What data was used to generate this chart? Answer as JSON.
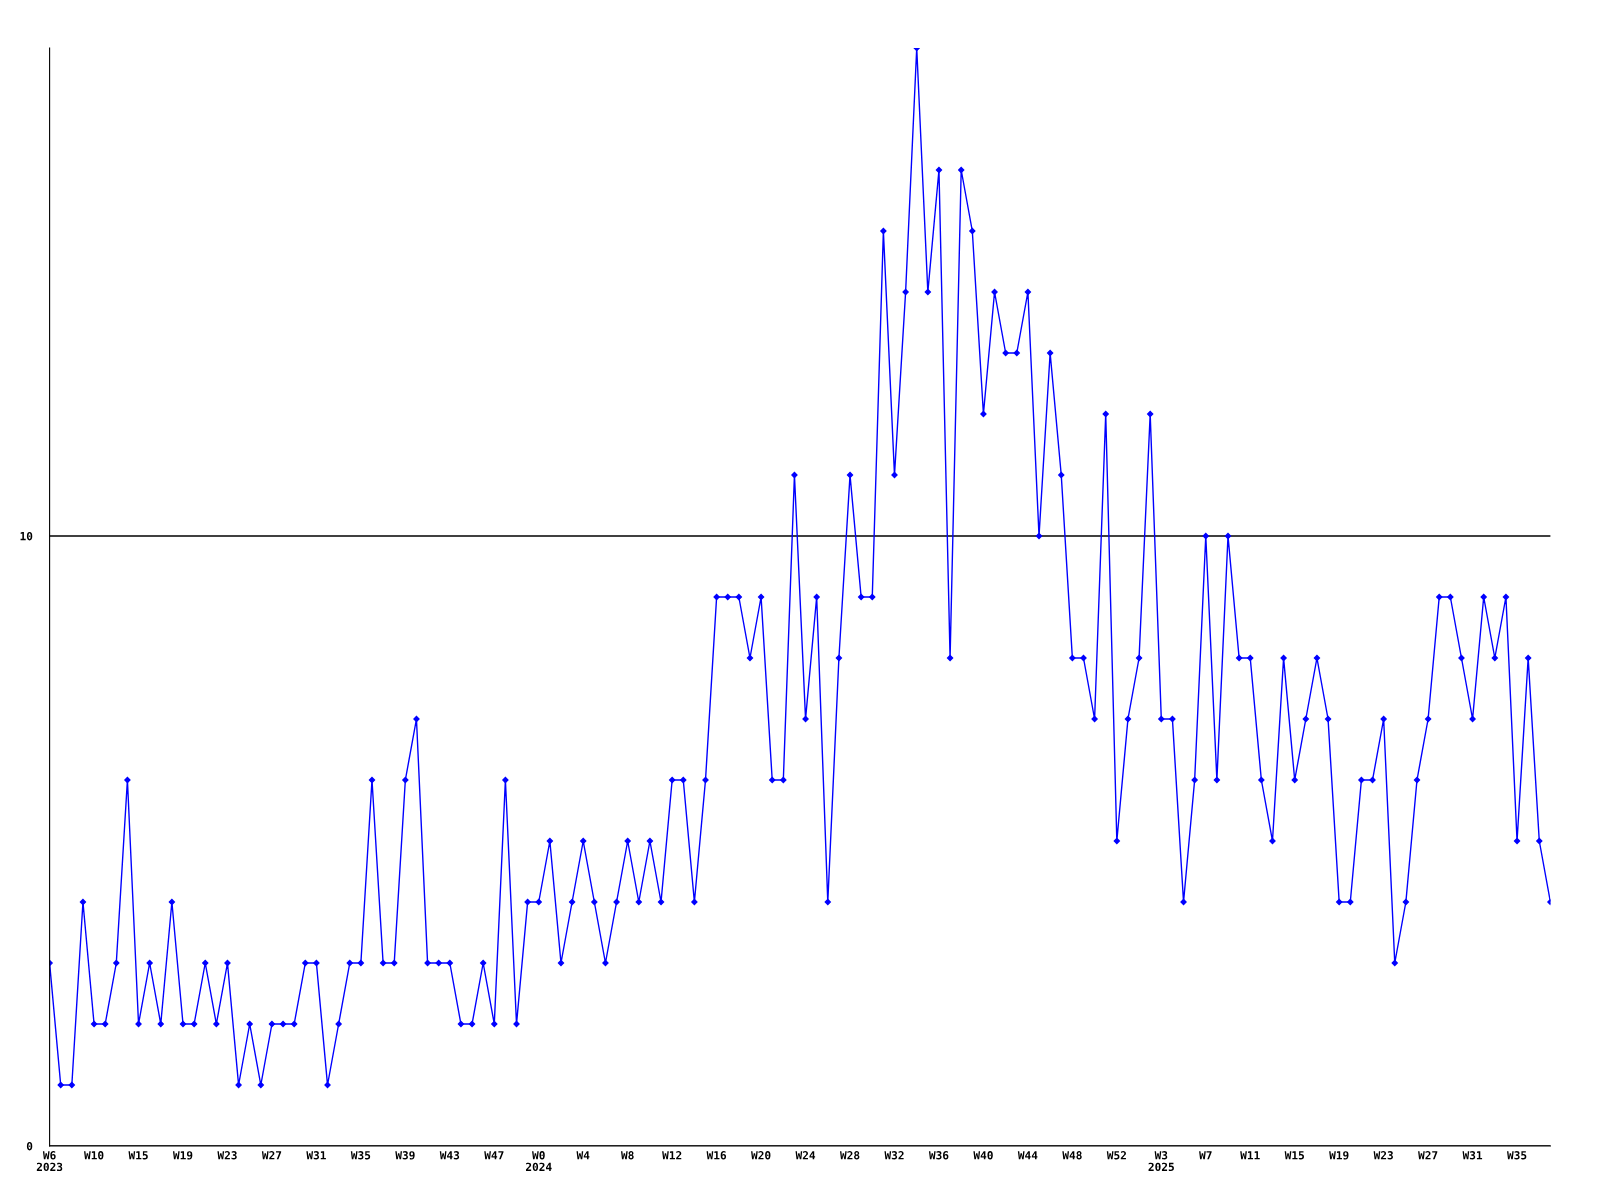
{
  "chart_data": {
    "type": "line",
    "categories": [
      "W6\n2023",
      null,
      null,
      null,
      "W10",
      null,
      null,
      null,
      "W15",
      null,
      null,
      null,
      "W19",
      null,
      null,
      null,
      "W23",
      null,
      null,
      null,
      "W27",
      null,
      null,
      null,
      "W31",
      null,
      null,
      null,
      "W35",
      null,
      null,
      null,
      "W39",
      null,
      null,
      null,
      "W43",
      null,
      null,
      null,
      "W47",
      null,
      null,
      null,
      "W0\n2024",
      null,
      null,
      null,
      "W4",
      null,
      null,
      null,
      "W8",
      null,
      null,
      null,
      "W12",
      null,
      null,
      null,
      "W16",
      null,
      null,
      null,
      "W20",
      null,
      null,
      null,
      "W24",
      null,
      null,
      null,
      "W28",
      null,
      null,
      null,
      "W32",
      null,
      null,
      null,
      "W36",
      null,
      null,
      null,
      "W40",
      null,
      null,
      null,
      "W44",
      null,
      null,
      null,
      "W48",
      null,
      null,
      null,
      "W52",
      null,
      null,
      null,
      "W3\n2025",
      null,
      null,
      null,
      "W7",
      null,
      null,
      null,
      "W11",
      null,
      null,
      null,
      "W15",
      null,
      null,
      null,
      "W19",
      null,
      null,
      null,
      "W23",
      null,
      null,
      null,
      "W27",
      null,
      null,
      null,
      "W31",
      null,
      null,
      null,
      "W35",
      null,
      null,
      null
    ],
    "series": [
      {
        "color": "#0000ff",
        "values": [
          3,
          1,
          1,
          4,
          2,
          2,
          3,
          6,
          2,
          3,
          2,
          4,
          2,
          2,
          3,
          2,
          3,
          1,
          2,
          1,
          2,
          2,
          2,
          3,
          3,
          1,
          2,
          3,
          3,
          6,
          3,
          3,
          6,
          7,
          3,
          3,
          3,
          2,
          2,
          3,
          2,
          6,
          2,
          4,
          4,
          5,
          3,
          4,
          5,
          4,
          3,
          4,
          5,
          4,
          5,
          4,
          6,
          6,
          4,
          6,
          9,
          9,
          9,
          8,
          9,
          6,
          6,
          11,
          7,
          9,
          4,
          8,
          11,
          9,
          9,
          15,
          11,
          14,
          18,
          14,
          16,
          8,
          16,
          15,
          12,
          14,
          13,
          13,
          14,
          10,
          13,
          11,
          8,
          8,
          7,
          12,
          5,
          7,
          8,
          12,
          7,
          7,
          4,
          6,
          10,
          6,
          10,
          8,
          8,
          6,
          5,
          8,
          6,
          7,
          8,
          7,
          4,
          4,
          6,
          6,
          7,
          3,
          4,
          6,
          7,
          9,
          9,
          8,
          7,
          9,
          8,
          9,
          5,
          8,
          5,
          4
        ]
      }
    ],
    "ylim": [
      0,
      18
    ],
    "yticks": [
      0,
      10
    ],
    "grid": "y",
    "marker": "diamond",
    "line_style": "solid"
  }
}
